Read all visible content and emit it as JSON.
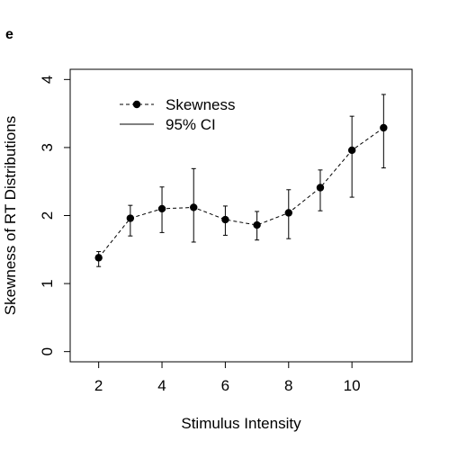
{
  "panel_label": "e",
  "chart_data": {
    "type": "line",
    "title": "",
    "xlabel": "Stimulus Intensity",
    "ylabel": "Skewness of RT Distributions",
    "xlim": [
      1.1,
      11.9
    ],
    "ylim": [
      -0.15,
      4.15
    ],
    "x_ticks": [
      2,
      4,
      6,
      8,
      10
    ],
    "y_ticks": [
      0,
      1,
      2,
      3,
      4
    ],
    "grid": false,
    "legend": {
      "placement": "top-left",
      "entries": [
        {
          "label": "Skewness",
          "style": "dashed-line-with-point"
        },
        {
          "label": "95% CI",
          "style": "solid-line"
        }
      ]
    },
    "series": [
      {
        "name": "Skewness",
        "color": "#000000",
        "x": [
          2,
          3,
          4,
          5,
          6,
          7,
          8,
          9,
          10,
          11
        ],
        "y": [
          1.38,
          1.96,
          2.1,
          2.12,
          1.94,
          1.86,
          2.04,
          2.41,
          2.96,
          3.29
        ],
        "ci_low": [
          1.25,
          1.7,
          1.75,
          1.61,
          1.71,
          1.64,
          1.66,
          2.07,
          2.27,
          2.7
        ],
        "ci_high": [
          1.47,
          2.15,
          2.42,
          2.69,
          2.14,
          2.06,
          2.38,
          2.67,
          3.46,
          3.78
        ]
      }
    ]
  }
}
